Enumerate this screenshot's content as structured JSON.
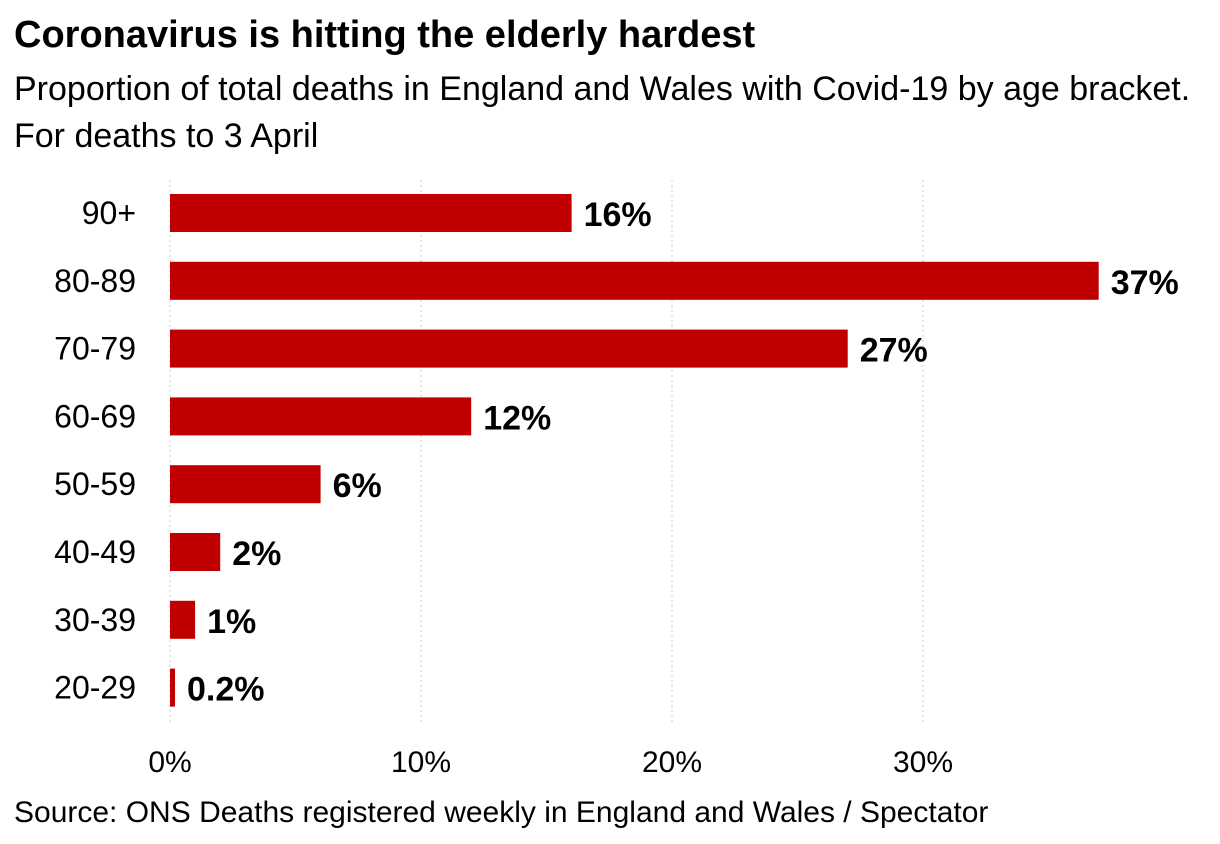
{
  "title": "Coronavirus is hitting the elderly hardest",
  "subtitle": "Proportion of total deaths in England and Wales with Covid-19 by age bracket. For deaths to 3 April",
  "source": "Source: ONS Deaths registered weekly in England and Wales / Spectator",
  "colors": {
    "bar": "#c00000",
    "grid": "#cccccc",
    "text": "#000000"
  },
  "chart_data": {
    "type": "bar",
    "orientation": "horizontal",
    "title": "Coronavirus is hitting the elderly hardest",
    "subtitle": "Proportion of total deaths in England and Wales with Covid-19 by age bracket. For deaths to 3 April",
    "categories": [
      "90+",
      "80-89",
      "70-79",
      "60-69",
      "50-59",
      "40-49",
      "30-39",
      "20-29"
    ],
    "values": [
      16,
      37,
      27,
      12,
      6,
      2,
      1,
      0.2
    ],
    "value_labels": [
      "16%",
      "37%",
      "27%",
      "12%",
      "6%",
      "2%",
      "1%",
      "0.2%"
    ],
    "xlabel": "",
    "ylabel": "",
    "xlim": [
      0,
      37
    ],
    "x_ticks": [
      0,
      10,
      20,
      30
    ],
    "x_tick_labels": [
      "0%",
      "10%",
      "20%",
      "30%"
    ],
    "grid": "vertical dotted",
    "legend": "none"
  }
}
